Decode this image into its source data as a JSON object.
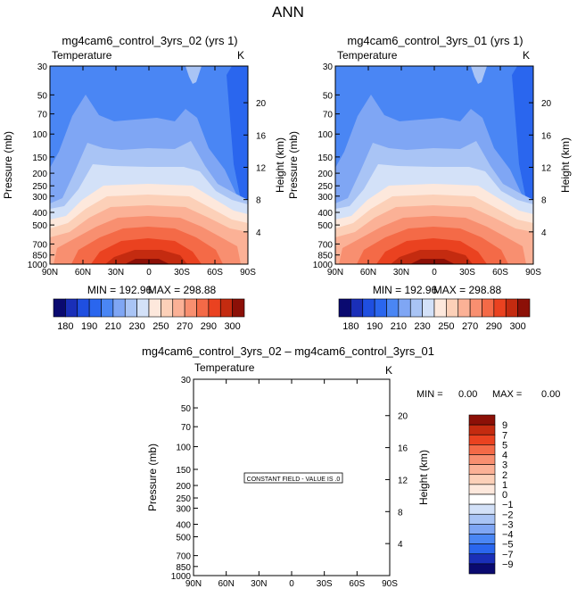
{
  "page_title": "ANN",
  "diff_title": "mg4cam6_control_3yrs_02 – mg4cam6_control_3yrs_01",
  "chart_data": [
    {
      "type": "contour",
      "title": "mg4cam6_control_3yrs_02 (yrs 1)",
      "variable": "Temperature",
      "units": "K",
      "xlabel": "",
      "ylabel": "Pressure (mb)",
      "ylabel_right": "Height (km)",
      "x_ticks": [
        "90N",
        "60N",
        "30N",
        "0",
        "30S",
        "60S",
        "90S"
      ],
      "y_ticks": [
        30,
        50,
        70,
        100,
        150,
        200,
        250,
        300,
        400,
        500,
        700,
        850,
        1000
      ],
      "height_ticks": [
        4,
        8,
        12,
        16,
        20
      ],
      "ylim": [
        1000,
        30
      ],
      "min_label": "MIN = 192.96",
      "max_label": "MAX = 298.88",
      "min": 192.96,
      "max": 298.88,
      "colorbar_labels": [
        "180",
        "190",
        "210",
        "230",
        "250",
        "270",
        "290",
        "300"
      ],
      "colorbar_colors": [
        "#0a0a70",
        "#1a2fb8",
        "#1f4fe0",
        "#2a66ee",
        "#4a86f4",
        "#7fa6f4",
        "#a9c4f5",
        "#d3e1f8",
        "#fde8dc",
        "#fcd0b8",
        "#fbb196",
        "#f88f70",
        "#f46a47",
        "#ea4220",
        "#c42b10",
        "#8c1007"
      ]
    },
    {
      "type": "contour",
      "title": "mg4cam6_control_3yrs_01 (yrs 1)",
      "variable": "Temperature",
      "units": "K",
      "xlabel": "",
      "ylabel": "Pressure (mb)",
      "ylabel_right": "Height (km)",
      "x_ticks": [
        "90N",
        "60N",
        "30N",
        "0",
        "30S",
        "60S",
        "90S"
      ],
      "y_ticks": [
        30,
        50,
        70,
        100,
        150,
        200,
        250,
        300,
        400,
        500,
        700,
        850,
        1000
      ],
      "height_ticks": [
        4,
        8,
        12,
        16,
        20
      ],
      "ylim": [
        1000,
        30
      ],
      "min_label": "MIN = 192.96",
      "max_label": "MAX = 298.88",
      "min": 192.96,
      "max": 298.88,
      "colorbar_labels": [
        "180",
        "190",
        "210",
        "230",
        "250",
        "270",
        "290",
        "300"
      ],
      "colorbar_colors": [
        "#0a0a70",
        "#1a2fb8",
        "#1f4fe0",
        "#2a66ee",
        "#4a86f4",
        "#7fa6f4",
        "#a9c4f5",
        "#d3e1f8",
        "#fde8dc",
        "#fcd0b8",
        "#fbb196",
        "#f88f70",
        "#f46a47",
        "#ea4220",
        "#c42b10",
        "#8c1007"
      ]
    },
    {
      "type": "contour",
      "title": "mg4cam6_control_3yrs_02 – mg4cam6_control_3yrs_01",
      "variable": "Temperature",
      "units": "K",
      "ylabel": "Pressure (mb)",
      "ylabel_right": "Height (km)",
      "x_ticks": [
        "90N",
        "60N",
        "30N",
        "0",
        "30S",
        "60S",
        "90S"
      ],
      "y_ticks": [
        30,
        50,
        70,
        100,
        150,
        200,
        250,
        300,
        400,
        500,
        700,
        850,
        1000
      ],
      "height_ticks": [
        4,
        8,
        12,
        16,
        20
      ],
      "ylim": [
        1000,
        30
      ],
      "annotation": "CONSTANT FIELD - VALUE IS .0",
      "min_label": "MIN =",
      "min_value": "0.00",
      "max_label": "MAX =",
      "max_value": "0.00",
      "colorbar_labels": [
        "9",
        "7",
        "5",
        "4",
        "3",
        "2",
        "1",
        "0",
        "−1",
        "−2",
        "−3",
        "−4",
        "−5",
        "−7",
        "−9"
      ],
      "colorbar_colors": [
        "#8c1007",
        "#c42b10",
        "#ea4220",
        "#f46a47",
        "#f88f70",
        "#fbb196",
        "#fcd0b8",
        "#fde8dc",
        "#ffffff",
        "#d3e1f8",
        "#a9c4f5",
        "#7fa6f4",
        "#4a86f4",
        "#2a66ee",
        "#1a2fb8",
        "#0a0a70"
      ]
    }
  ]
}
